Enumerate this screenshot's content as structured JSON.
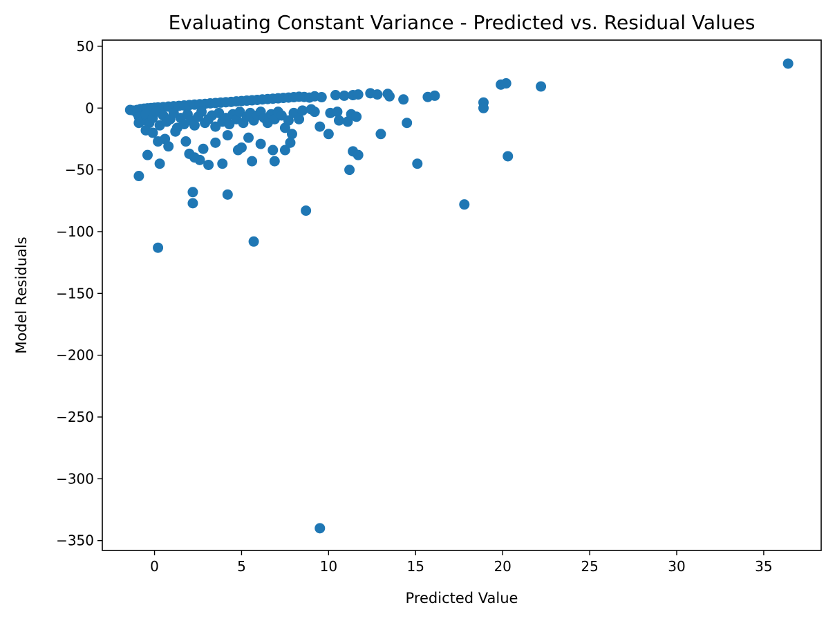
{
  "chart_data": {
    "type": "scatter",
    "title": "Evaluating Constant Variance - Predicted vs. Residual Values",
    "xlabel": "Predicted Value",
    "ylabel": "Model Residuals",
    "xlim": [
      -3.0,
      38.3
    ],
    "ylim": [
      -358,
      55
    ],
    "xticks": [
      0,
      5,
      10,
      15,
      20,
      25,
      30,
      35
    ],
    "yticks": [
      50,
      0,
      -50,
      -100,
      -150,
      -200,
      -250,
      -300,
      -350
    ],
    "grid": false,
    "point_color": "#1f77b4",
    "series": [
      {
        "points": [
          [
            -1.4,
            -1.5
          ],
          [
            -1.2,
            -2.0
          ],
          [
            -1.0,
            -1.5
          ],
          [
            -0.8,
            -0.8
          ],
          [
            -0.6,
            -0.5
          ],
          [
            -0.4,
            -0.2
          ],
          [
            -0.2,
            0.0
          ],
          [
            0.0,
            0.3
          ],
          [
            0.2,
            0.5
          ],
          [
            0.5,
            0.8
          ],
          [
            0.8,
            1.2
          ],
          [
            1.1,
            1.5
          ],
          [
            1.4,
            1.8
          ],
          [
            1.7,
            2.1
          ],
          [
            2.0,
            2.5
          ],
          [
            2.3,
            2.8
          ],
          [
            2.6,
            3.1
          ],
          [
            2.9,
            3.4
          ],
          [
            3.2,
            3.8
          ],
          [
            3.5,
            4.1
          ],
          [
            3.8,
            4.4
          ],
          [
            4.1,
            4.7
          ],
          [
            4.4,
            5.0
          ],
          [
            4.7,
            5.4
          ],
          [
            5.0,
            5.7
          ],
          [
            5.3,
            6.0
          ],
          [
            5.6,
            6.3
          ],
          [
            5.9,
            6.6
          ],
          [
            6.2,
            7.0
          ],
          [
            6.5,
            7.3
          ],
          [
            6.8,
            7.6
          ],
          [
            7.1,
            7.9
          ],
          [
            7.4,
            8.2
          ],
          [
            7.7,
            8.5
          ],
          [
            8.0,
            8.8
          ],
          [
            8.3,
            9.2
          ],
          [
            8.6,
            9.0
          ],
          [
            8.9,
            8.5
          ],
          [
            9.2,
            9.5
          ],
          [
            9.6,
            8.8
          ],
          [
            10.4,
            10.5
          ],
          [
            10.9,
            10.0
          ],
          [
            11.4,
            10.5
          ],
          [
            11.7,
            11.0
          ],
          [
            12.4,
            12.0
          ],
          [
            12.8,
            11.0
          ],
          [
            13.4,
            11.5
          ],
          [
            13.5,
            9.5
          ],
          [
            14.3,
            7.0
          ],
          [
            15.7,
            9.0
          ],
          [
            16.1,
            10.0
          ],
          [
            19.9,
            19.0
          ],
          [
            20.2,
            20.0
          ],
          [
            22.2,
            17.5
          ],
          [
            36.4,
            36.0
          ],
          [
            -1.0,
            -4.0
          ],
          [
            -0.9,
            -7.0
          ],
          [
            -0.7,
            -10.0
          ],
          [
            -0.5,
            -5.0
          ],
          [
            -0.3,
            -12.0
          ],
          [
            -0.1,
            -8.0
          ],
          [
            0.1,
            -3.0
          ],
          [
            0.3,
            -14.0
          ],
          [
            0.5,
            -6.0
          ],
          [
            0.7,
            -11.0
          ],
          [
            0.9,
            -9.0
          ],
          [
            1.1,
            -4.0
          ],
          [
            1.3,
            -16.0
          ],
          [
            1.5,
            -8.0
          ],
          [
            1.7,
            -13.0
          ],
          [
            1.9,
            -5.0
          ],
          [
            2.1,
            -10.0
          ],
          [
            2.3,
            -14.0
          ],
          [
            2.5,
            -7.0
          ],
          [
            2.7,
            -3.0
          ],
          [
            2.9,
            -12.0
          ],
          [
            3.1,
            -9.0
          ],
          [
            3.3,
            -6.0
          ],
          [
            3.5,
            -15.0
          ],
          [
            3.7,
            -4.0
          ],
          [
            3.9,
            -11.0
          ],
          [
            4.1,
            -8.0
          ],
          [
            4.3,
            -13.0
          ],
          [
            4.5,
            -5.0
          ],
          [
            4.7,
            -9.0
          ],
          [
            4.9,
            -3.0
          ],
          [
            5.1,
            -12.0
          ],
          [
            5.3,
            -7.0
          ],
          [
            5.5,
            -4.0
          ],
          [
            5.7,
            -10.0
          ],
          [
            5.9,
            -6.0
          ],
          [
            6.1,
            -3.0
          ],
          [
            6.3,
            -8.0
          ],
          [
            6.5,
            -12.0
          ],
          [
            6.7,
            -5.0
          ],
          [
            6.9,
            -9.0
          ],
          [
            7.1,
            -3.0
          ],
          [
            7.3,
            -6.0
          ],
          [
            7.5,
            -16.0
          ],
          [
            7.7,
            -10.0
          ],
          [
            8.0,
            -4.0
          ],
          [
            8.3,
            -9.0
          ],
          [
            8.5,
            -2.0
          ],
          [
            9.0,
            -1.0
          ],
          [
            9.2,
            -3.0
          ],
          [
            10.1,
            -4.0
          ],
          [
            10.5,
            -3.0
          ],
          [
            10.6,
            -10.0
          ],
          [
            11.1,
            -11.0
          ],
          [
            11.3,
            -5.0
          ],
          [
            11.6,
            -7.0
          ],
          [
            14.5,
            -12.0
          ],
          [
            18.9,
            4.5
          ],
          [
            18.9,
            0.0
          ],
          [
            -0.9,
            -12.0
          ],
          [
            -0.5,
            -18.0
          ],
          [
            -0.1,
            -20.0
          ],
          [
            0.2,
            -27.0
          ],
          [
            0.6,
            -25.0
          ],
          [
            0.8,
            -31.0
          ],
          [
            1.2,
            -19.0
          ],
          [
            1.8,
            -27.0
          ],
          [
            2.0,
            -37.0
          ],
          [
            2.3,
            -40.0
          ],
          [
            2.6,
            -42.0
          ],
          [
            2.8,
            -33.0
          ],
          [
            3.1,
            -46.0
          ],
          [
            3.5,
            -28.0
          ],
          [
            3.9,
            -45.0
          ],
          [
            4.2,
            -22.0
          ],
          [
            4.8,
            -34.0
          ],
          [
            5.0,
            -32.0
          ],
          [
            5.4,
            -24.0
          ],
          [
            5.6,
            -43.0
          ],
          [
            6.1,
            -29.0
          ],
          [
            6.8,
            -34.0
          ],
          [
            6.9,
            -43.0
          ],
          [
            7.5,
            -34.0
          ],
          [
            7.8,
            -28.0
          ],
          [
            7.9,
            -21.0
          ],
          [
            9.5,
            -15.0
          ],
          [
            10.0,
            -21.0
          ],
          [
            11.2,
            -50.0
          ],
          [
            11.4,
            -35.0
          ],
          [
            11.7,
            -38.0
          ],
          [
            13.0,
            -21.0
          ],
          [
            15.1,
            -45.0
          ],
          [
            20.3,
            -39.0
          ],
          [
            -0.4,
            -38.0
          ],
          [
            0.3,
            -45.0
          ],
          [
            -0.9,
            -55.0
          ],
          [
            2.2,
            -68.0
          ],
          [
            2.2,
            -77.0
          ],
          [
            4.2,
            -70.0
          ],
          [
            8.7,
            -83.0
          ],
          [
            17.8,
            -78.0
          ],
          [
            0.2,
            -113.0
          ],
          [
            5.7,
            -108.0
          ],
          [
            9.5,
            -340.0
          ]
        ]
      }
    ]
  }
}
